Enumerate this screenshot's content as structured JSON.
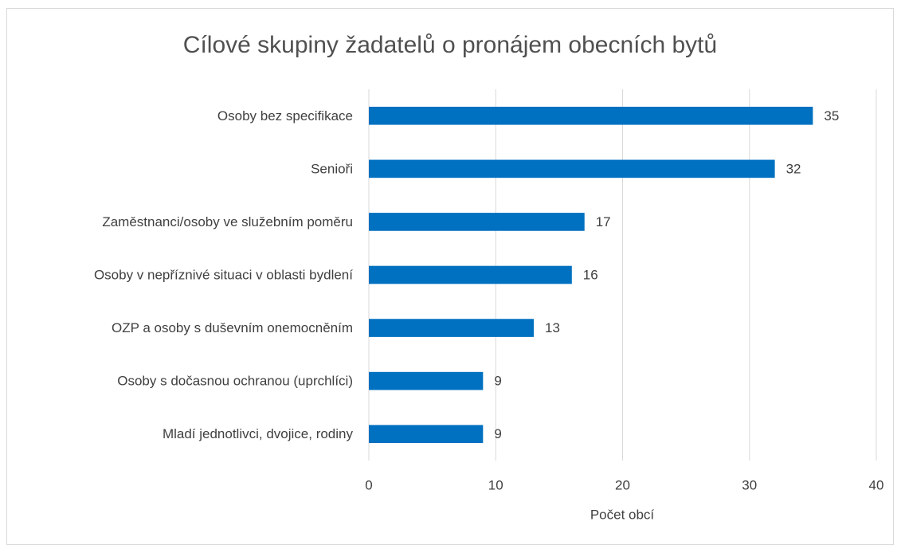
{
  "chart_data": {
    "type": "bar",
    "horizontal": true,
    "title": "Cílové skupiny žadatelů o pronájem obecních bytů",
    "x_label": "Počet obcí",
    "categories": [
      "Osoby bez specifikace",
      "Senioři",
      "Zaměstnanci/osoby ve služebním poměru",
      "Osoby v nepříznivé situaci v oblasti bydlení",
      "OZP a osoby s duševním onemocněním",
      "Osoby s dočasnou ochranou (uprchlíci)",
      "Mladí jednotlivci, dvojice, rodiny"
    ],
    "values": [
      35,
      32,
      17,
      16,
      13,
      9,
      9
    ],
    "color": "#0070c0",
    "xlim": [
      0,
      40
    ],
    "xticks": [
      0,
      10,
      20,
      30,
      40
    ],
    "grid": true
  }
}
